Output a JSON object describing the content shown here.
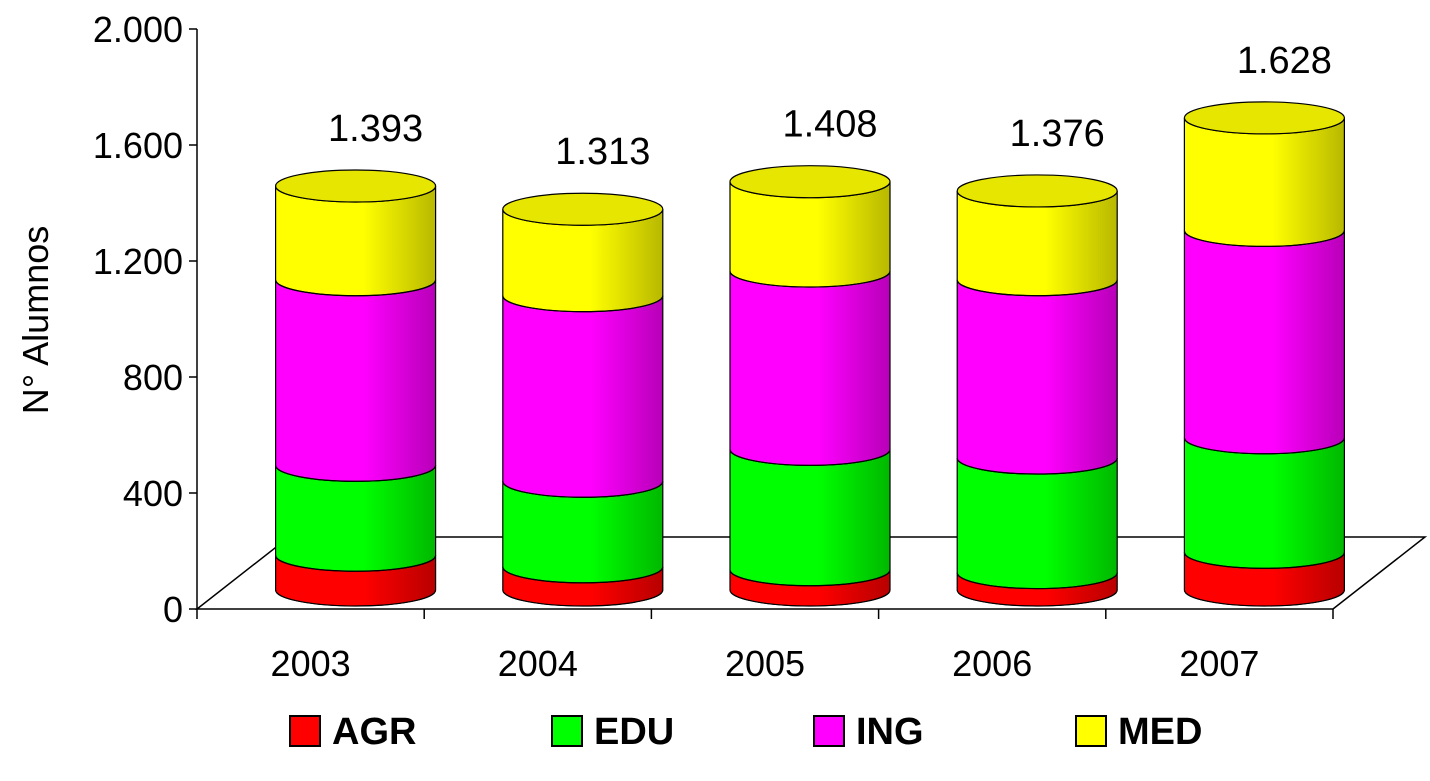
{
  "chart_data": {
    "type": "bar",
    "style": "stacked 3D cylinder",
    "title": "",
    "xlabel": "",
    "ylabel": "N° Alumnos",
    "ylim": [
      0,
      2000
    ],
    "yticks": [
      0,
      400,
      800,
      1200,
      1600,
      2000
    ],
    "ytick_labels": [
      "0",
      "400",
      "800",
      "1.200",
      "1.600",
      "2.000"
    ],
    "categories": [
      "2003",
      "2004",
      "2005",
      "2006",
      "2007"
    ],
    "series": [
      {
        "name": "AGR",
        "color": "#ff0000",
        "values": [
          120,
          80,
          70,
          60,
          130
        ]
      },
      {
        "name": "EDU",
        "color": "#00ff00",
        "values": [
          310,
          295,
          415,
          395,
          395
        ]
      },
      {
        "name": "ING",
        "color": "#ff00ff",
        "values": [
          640,
          640,
          615,
          615,
          715
        ]
      },
      {
        "name": "MED",
        "color": "#ffff00",
        "values": [
          323,
          298,
          308,
          306,
          388
        ]
      }
    ],
    "totals": [
      1393,
      1313,
      1408,
      1376,
      1628
    ],
    "total_labels": [
      "1.393",
      "1.313",
      "1.408",
      "1.376",
      "1.628"
    ],
    "grid": false,
    "legend_position": "bottom"
  }
}
